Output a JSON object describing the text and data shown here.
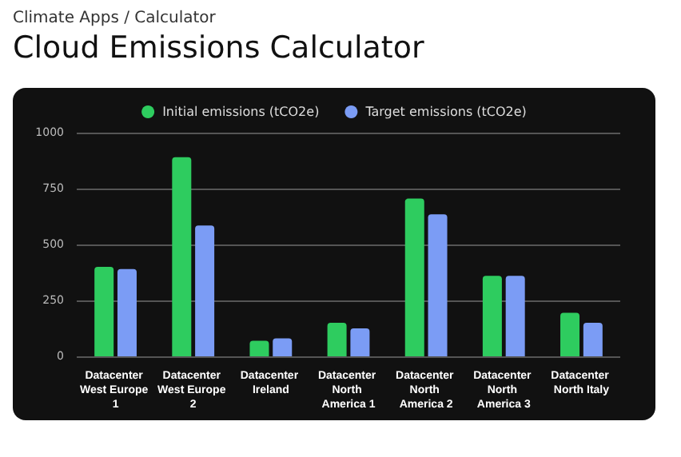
{
  "chart_data": {
    "type": "bar",
    "subtitle": "Climate Apps / Calculator",
    "title": "Cloud Emissions Calculator",
    "categories": [
      "Datacenter West Europe 1",
      "Datacenter West Europe 2",
      "Datacenter Ireland",
      "Datacenter North America 1",
      "Datacenter North America 2",
      "Datacenter North America 3",
      "Datacenter North Italy"
    ],
    "series": [
      {
        "name": "Initial emissions (tCO2e)",
        "color": "#2ecc5f",
        "values": [
          400,
          890,
          70,
          150,
          705,
          360,
          195
        ]
      },
      {
        "name": "Target emissions (tCO2e)",
        "color": "#7b9cf5",
        "values": [
          390,
          585,
          80,
          125,
          635,
          360,
          150
        ]
      }
    ],
    "ylim": [
      0,
      1000
    ],
    "yticks": [
      0,
      250,
      500,
      750,
      1000
    ],
    "grid": "y",
    "legend": "top"
  }
}
